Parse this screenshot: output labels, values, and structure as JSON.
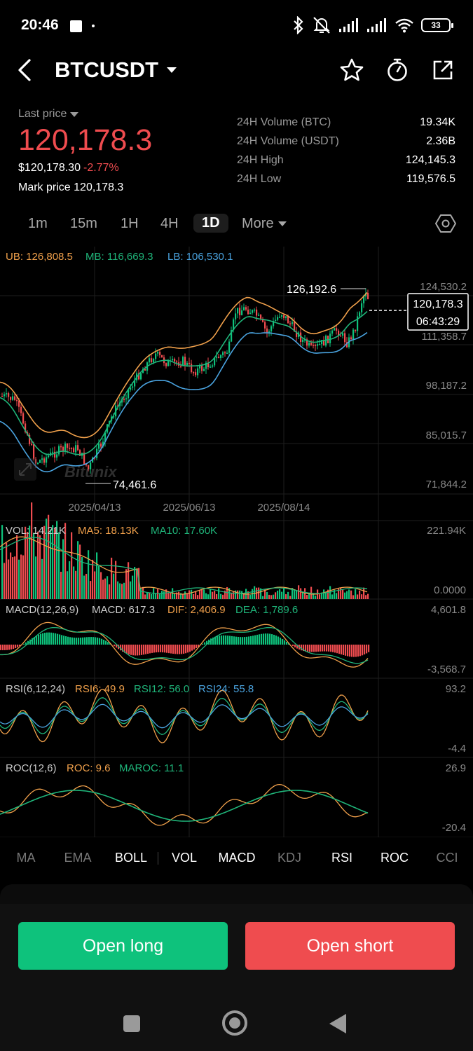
{
  "status_bar": {
    "time": "20:46",
    "battery": "33"
  },
  "header": {
    "symbol": "BTCUSDT"
  },
  "price": {
    "last_price_label": "Last price",
    "value": "120,178.3",
    "usd_value": "$120,178.30",
    "change": "-2.77%",
    "mark_label": "Mark price",
    "mark_value": "120,178.3"
  },
  "stats": [
    {
      "label": "24H Volume (BTC)",
      "value": "19.34K"
    },
    {
      "label": "24H Volume (USDT)",
      "value": "2.36B"
    },
    {
      "label": "24H High",
      "value": "124,145.3"
    },
    {
      "label": "24H Low",
      "value": "119,576.5"
    }
  ],
  "timeframes": {
    "t1": "1m",
    "t2": "15m",
    "t3": "1H",
    "t4": "4H",
    "t5": "1D",
    "more": "More"
  },
  "main_chart": {
    "legend": {
      "ub": "UB: 126,808.5",
      "mb": "MB: 116,669.3",
      "lb": "LB: 106,530.1"
    },
    "y_ticks": [
      "124,530.2",
      "111,358.7",
      "98,187.2",
      "85,015.7",
      "71,844.2"
    ],
    "high_marker": "126,192.6",
    "low_marker": "74,461.6",
    "current_price": "120,178.3",
    "countdown": "06:43:29",
    "x_ticks": [
      "2025/04/13",
      "2025/06/13",
      "2025/08/14"
    ],
    "watermark": "Bitunix"
  },
  "vol_panel": {
    "vol": "VOL: 14.21K",
    "ma5": "MA5: 18.13K",
    "ma10": "MA10: 17.60K",
    "max": "221.94K",
    "min": "0.0000"
  },
  "macd_panel": {
    "name": "MACD(12,26,9)",
    "macd": "MACD: 617.3",
    "dif": "DIF: 2,406.9",
    "dea": "DEA: 1,789.6",
    "max": "4,601.8",
    "min": "-3,568.7"
  },
  "rsi_panel": {
    "name": "RSI(6,12,24)",
    "rsi6": "RSI6: 49.9",
    "rsi12": "RSI12: 56.0",
    "rsi24": "RSI24: 55.8",
    "max": "93.2",
    "min": "-4.4"
  },
  "roc_panel": {
    "name": "ROC(12,6)",
    "roc": "ROC: 9.6",
    "maroc": "MAROC: 11.1",
    "max": "26.9",
    "min": "-20.4"
  },
  "indicator_tabs": {
    "ma": "MA",
    "ema": "EMA",
    "boll": "BOLL",
    "vol": "VOL",
    "macd": "MACD",
    "kdj": "KDJ",
    "rsi": "RSI",
    "roc": "ROC",
    "cci": "CCI"
  },
  "actions": {
    "long": "Open long",
    "short": "Open short"
  },
  "colors": {
    "up": "#0ec27c",
    "down": "#ef4c4f",
    "orange": "#f0a04b",
    "blue": "#4aa3df"
  }
}
